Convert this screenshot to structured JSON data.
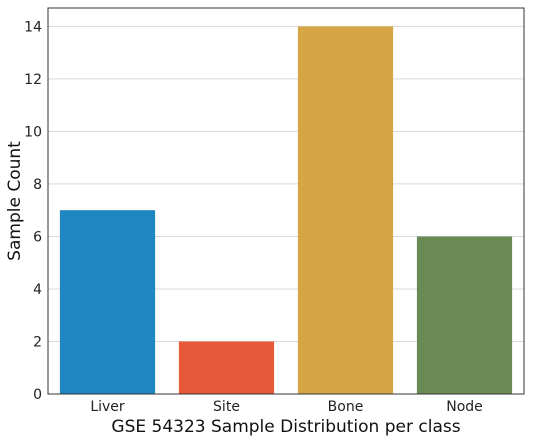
{
  "chart_data": {
    "type": "bar",
    "title": "",
    "xlabel": "GSE 54323 Sample Distribution per class",
    "ylabel": "Sample Count",
    "categories": [
      "Liver",
      "Site",
      "Bone",
      "Node"
    ],
    "values": [
      7,
      2,
      14,
      6
    ],
    "colors": [
      "#1f86c2",
      "#e8593a",
      "#d4a744",
      "#6a8a55"
    ],
    "ylim": [
      0,
      14.7
    ],
    "yticks": [
      0,
      2,
      4,
      6,
      8,
      10,
      12,
      14
    ],
    "grid": true,
    "grid_axis": "y",
    "legend": false
  }
}
